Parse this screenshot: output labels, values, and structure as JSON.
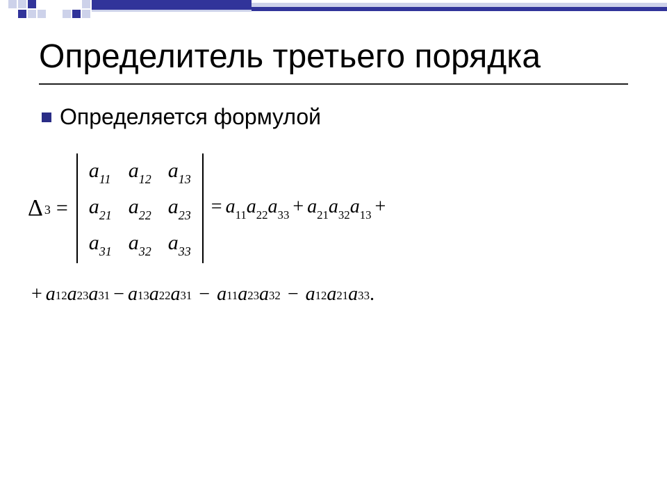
{
  "decor": {
    "dark": "#31349a",
    "light": "#cdd2ea",
    "mid": "#8f95c7"
  },
  "title": "Определитель третьего порядка",
  "bullet_text": "Определяется формулой",
  "formula": {
    "delta_label": "Δ",
    "delta_sub": "3",
    "eq": "=",
    "matrix": [
      [
        "11",
        "12",
        "13"
      ],
      [
        "21",
        "22",
        "23"
      ],
      [
        "31",
        "32",
        "33"
      ]
    ],
    "a": "a",
    "line1_terms": [
      {
        "op": "=",
        "subs": [
          "11",
          "22",
          "33"
        ]
      },
      {
        "op": "+",
        "subs": [
          "21",
          "32",
          "13"
        ]
      },
      {
        "op": "+",
        "trailing": true
      }
    ],
    "line2_terms": [
      {
        "op": "+",
        "subs": [
          "12",
          "23",
          "31"
        ]
      },
      {
        "op": "−",
        "subs": [
          "13",
          "22",
          "31"
        ]
      },
      {
        "op": "−",
        "wide": true,
        "subs": [
          "11",
          "23",
          "32"
        ]
      },
      {
        "op": "−",
        "wide": true,
        "subs": [
          "12",
          "21",
          "33"
        ],
        "period": true
      }
    ]
  }
}
